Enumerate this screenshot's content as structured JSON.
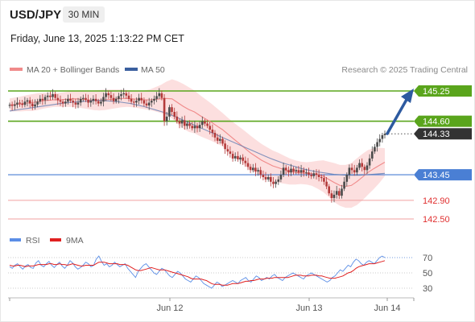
{
  "header": {
    "symbol": "USD/JPY",
    "timeframe": "30 MIN",
    "datetime": "Friday, June 13, 2025 1:13:22 PM CET"
  },
  "legend": {
    "items": [
      {
        "label": "MA 20 + Bollinger Bands",
        "color": "#f08a8a"
      },
      {
        "label": "MA 50",
        "color": "#3a5f9f"
      }
    ],
    "credit": "Research © 2025 Trading Central"
  },
  "rsi_legend": {
    "items": [
      {
        "label": "RSI",
        "color": "#5b8ee6"
      },
      {
        "label": "9MA",
        "color": "#e02020"
      }
    ]
  },
  "colors": {
    "resistance": "#5aa51c",
    "support_blue": "#4a7fd4",
    "support_red": "#f0a0a0",
    "label_red": "#e03030",
    "current": "#333333",
    "arrow": "#2d5aa0",
    "candle_up": "#4a4a4a",
    "candle_down": "#b33a3a"
  },
  "chart_data": {
    "type": "candlestick",
    "symbol": "USD/JPY",
    "interval": "30 MIN",
    "y_range": [
      142.3,
      145.55
    ],
    "x_ticks": [
      "Jun 12",
      "Jun 13",
      "Jun 14"
    ],
    "levels": [
      {
        "value": 145.25,
        "label": "145.25",
        "kind": "resistance"
      },
      {
        "value": 144.6,
        "label": "144.60",
        "kind": "resistance"
      },
      {
        "value": 144.33,
        "label": "144.33",
        "kind": "current"
      },
      {
        "value": 143.45,
        "label": "143.45",
        "kind": "support"
      },
      {
        "value": 142.9,
        "label": "142.90",
        "kind": "support"
      },
      {
        "value": 142.5,
        "label": "142.50",
        "kind": "support"
      }
    ],
    "close_path": [
      144.95,
      144.93,
      144.96,
      145.0,
      144.98,
      144.95,
      145.02,
      145.05,
      144.98,
      144.92,
      144.96,
      145.02,
      145.08,
      145.05,
      145.12,
      145.15,
      145.12,
      145.18,
      145.1,
      145.05,
      145.02,
      144.98,
      145.02,
      145.08,
      145.04,
      145.0,
      144.96,
      145.0,
      145.08,
      145.1,
      145.06,
      145.0,
      145.04,
      145.08,
      145.03,
      144.98,
      145.02,
      145.12,
      145.2,
      145.16,
      145.1,
      145.03,
      145.08,
      145.14,
      145.18,
      145.2,
      145.15,
      145.08,
      145.02,
      145.0,
      145.04,
      145.1,
      145.05,
      144.98,
      144.94,
      145.0,
      145.04,
      145.08,
      145.14,
      145.2,
      145.1,
      144.6,
      144.7,
      144.9,
      144.8,
      144.7,
      144.6,
      144.55,
      144.62,
      144.5,
      144.55,
      144.5,
      144.45,
      144.5,
      144.45,
      144.52,
      144.6,
      144.55,
      144.5,
      144.42,
      144.35,
      144.25,
      144.18,
      144.22,
      144.12,
      144.0,
      143.95,
      143.9,
      143.8,
      143.85,
      143.78,
      143.82,
      143.75,
      143.7,
      143.62,
      143.55,
      143.6,
      143.52,
      143.55,
      143.45,
      143.4,
      143.35,
      143.4,
      143.3,
      143.25,
      143.3,
      143.35,
      143.45,
      143.6,
      143.55,
      143.5,
      143.58,
      143.52,
      143.55,
      143.5,
      143.55,
      143.5,
      143.5,
      143.45,
      143.42,
      143.48,
      143.45,
      143.4,
      143.38,
      143.3,
      143.2,
      143.05,
      142.95,
      143.02,
      143.1,
      143.0,
      143.15,
      143.3,
      143.45,
      143.6,
      143.55,
      143.5,
      143.6,
      143.7,
      143.62,
      143.55,
      143.65,
      143.8,
      143.95,
      144.05,
      144.15,
      144.22,
      144.3,
      144.33
    ],
    "rsi_levels": [
      70,
      50,
      30
    ],
    "rsi_path": [
      58,
      56,
      60,
      62,
      58,
      55,
      59,
      61,
      57,
      56,
      63,
      66,
      60,
      58,
      62,
      65,
      60,
      57,
      61,
      64,
      59,
      56,
      60,
      66,
      63,
      58,
      55,
      57,
      60,
      64,
      62,
      58,
      60,
      68,
      72,
      65,
      60,
      62,
      58,
      60,
      64,
      61,
      58,
      60,
      62,
      56,
      52,
      48,
      44,
      52,
      56,
      60,
      62,
      58,
      54,
      50,
      48,
      52,
      56,
      54,
      50,
      46,
      44,
      48,
      52,
      50,
      46,
      42,
      40,
      38,
      42,
      46,
      44,
      40,
      36,
      34,
      32,
      30,
      34,
      38,
      36,
      32,
      34,
      36,
      38,
      40,
      38,
      36,
      40,
      42,
      44,
      40,
      38,
      42,
      46,
      44,
      40,
      42,
      44,
      42,
      46,
      48,
      44,
      42,
      40,
      44,
      46,
      48,
      50,
      48,
      46,
      44,
      42,
      46,
      48,
      50,
      48,
      46,
      44,
      42,
      40,
      38,
      40,
      44,
      46,
      50,
      54,
      52,
      56,
      60,
      58,
      64,
      68,
      66,
      62,
      60,
      64,
      66,
      64,
      62,
      66,
      70,
      72,
      70
    ],
    "rsi_ma_path": [
      60,
      59,
      59,
      60,
      60,
      59,
      58,
      59,
      59,
      59,
      60,
      61,
      61,
      61,
      61,
      62,
      62,
      61,
      61,
      62,
      61,
      61,
      60,
      61,
      62,
      61,
      60,
      59,
      59,
      60,
      60,
      60,
      60,
      62,
      64,
      64,
      64,
      63,
      62,
      62,
      62,
      62,
      61,
      61,
      61,
      60,
      58,
      56,
      54,
      53,
      53,
      54,
      55,
      56,
      57,
      56,
      55,
      54,
      54,
      54,
      53,
      52,
      51,
      50,
      49,
      48,
      47,
      46,
      45,
      43,
      42,
      42,
      42,
      42,
      41,
      40,
      38,
      36,
      35,
      35,
      35,
      34,
      34,
      34,
      35,
      36,
      36,
      36,
      37,
      38,
      39,
      39,
      40,
      40,
      41,
      42,
      42,
      42,
      43,
      43,
      43,
      44,
      44,
      44,
      44,
      44,
      44,
      45,
      46,
      47,
      47,
      47,
      46,
      46,
      46,
      47,
      47,
      47,
      46,
      46,
      45,
      44,
      43,
      43,
      43,
      44,
      45,
      46,
      48,
      50,
      51,
      53,
      56,
      58,
      59,
      60,
      61,
      62,
      62,
      62,
      63,
      64,
      65,
      66
    ],
    "ma20_path": [
      144.95,
      144.96,
      144.97,
      144.99,
      145.0,
      145.02,
      145.04,
      145.05,
      145.06,
      145.06,
      145.07,
      145.08,
      145.08,
      145.07,
      145.06,
      145.05,
      145.05,
      145.06,
      145.07,
      145.08,
      145.09,
      145.09,
      145.08,
      145.07,
      145.06,
      145.06,
      145.07,
      145.08,
      145.09,
      145.08,
      145.0,
      144.92,
      144.85,
      144.8,
      144.72,
      144.65,
      144.58,
      144.5,
      144.42,
      144.32,
      144.22,
      144.12,
      144.02,
      143.92,
      143.84,
      143.76,
      143.7,
      143.64,
      143.6,
      143.56,
      143.52,
      143.5,
      143.49,
      143.48,
      143.47,
      143.45,
      143.42,
      143.35,
      143.28,
      143.22,
      143.2,
      143.22,
      143.3,
      143.4,
      143.5,
      143.58,
      143.65,
      143.72
    ],
    "ma50_path": [
      144.82,
      144.84,
      144.86,
      144.88,
      144.9,
      144.92,
      144.94,
      144.96,
      144.98,
      145.0,
      145.01,
      145.02,
      145.03,
      145.04,
      145.05,
      145.04,
      145.03,
      145.02,
      145.0,
      144.98,
      144.95,
      144.92,
      144.88,
      144.84,
      144.8,
      144.75,
      144.7,
      144.64,
      144.58,
      144.52,
      144.46,
      144.4,
      144.34,
      144.28,
      144.22,
      144.16,
      144.1,
      144.04,
      143.98,
      143.92,
      143.86,
      143.8,
      143.75,
      143.7,
      143.66,
      143.62,
      143.58,
      143.55,
      143.52,
      143.5,
      143.48,
      143.46,
      143.45,
      143.44,
      143.44,
      143.44,
      143.45,
      143.46,
      143.47,
      143.48
    ]
  }
}
